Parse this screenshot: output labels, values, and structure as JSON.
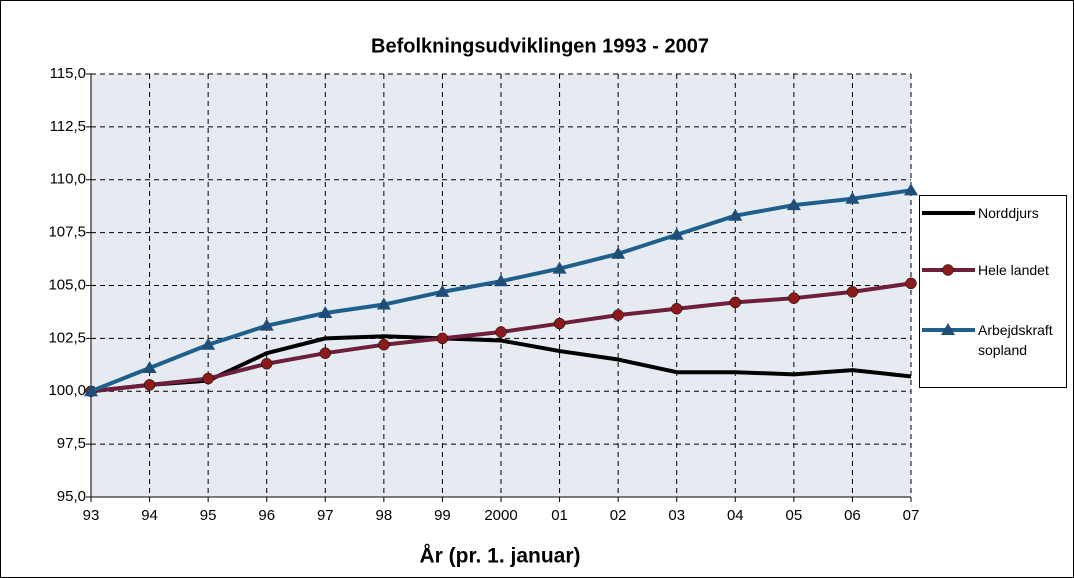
{
  "chart_data": {
    "type": "line",
    "title": "Befolkningsudviklingen 1993 - 2007",
    "x_label": "År (pr. 1. januar)",
    "categories": [
      "93",
      "94",
      "95",
      "96",
      "97",
      "98",
      "99",
      "2000",
      "01",
      "02",
      "03",
      "04",
      "05",
      "06",
      "07"
    ],
    "series": [
      {
        "name": "Norddjurs",
        "color": "#000000",
        "marker": "none",
        "values": [
          100.0,
          100.3,
          100.5,
          101.8,
          102.5,
          102.6,
          102.5,
          102.4,
          101.9,
          101.5,
          100.9,
          100.9,
          100.8,
          101.0,
          100.7
        ]
      },
      {
        "name": "Hele landet",
        "color": "#6e1f3c",
        "marker": "circle",
        "marker_color": "#8b1a1a",
        "values": [
          100.0,
          100.3,
          100.6,
          101.3,
          101.8,
          102.2,
          102.5,
          102.8,
          103.2,
          103.6,
          103.9,
          104.2,
          104.4,
          104.7,
          105.1
        ]
      },
      {
        "name": "Arbejdskraft sopland",
        "color": "#1f5f8b",
        "marker": "triangle",
        "marker_color": "#1f4e79",
        "values": [
          100.0,
          101.1,
          102.2,
          103.1,
          103.7,
          104.1,
          104.7,
          105.2,
          105.8,
          106.5,
          107.4,
          108.3,
          108.8,
          109.1,
          109.5
        ]
      }
    ],
    "ylim": [
      95,
      115
    ],
    "yticks": [
      {
        "value": 95,
        "label": "95,0"
      },
      {
        "value": 97.5,
        "label": "97,5"
      },
      {
        "value": 100,
        "label": "100,0"
      },
      {
        "value": 102.5,
        "label": "102,5"
      },
      {
        "value": 105,
        "label": "105,0"
      },
      {
        "value": 107.5,
        "label": "107,5"
      },
      {
        "value": 110,
        "label": "110,0"
      },
      {
        "value": 112.5,
        "label": "112,5"
      },
      {
        "value": 115,
        "label": "115,0"
      }
    ],
    "grid": true,
    "legend": "right"
  }
}
